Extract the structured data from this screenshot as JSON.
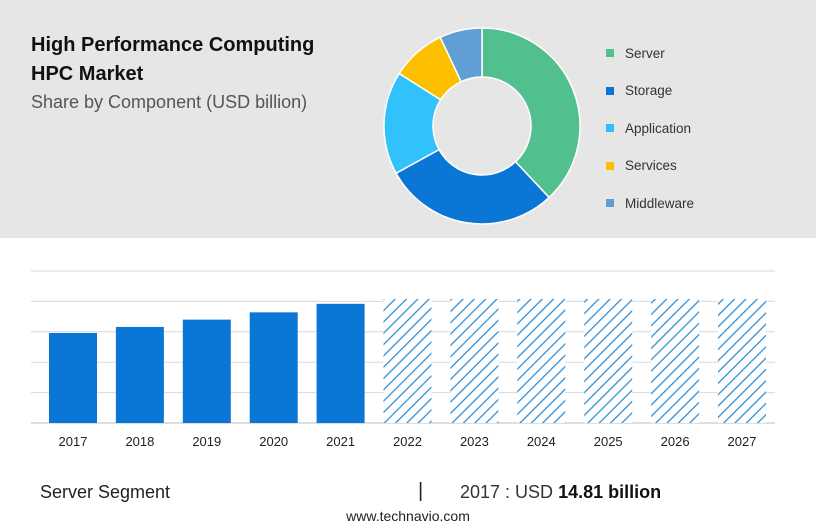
{
  "header": {
    "title": "High Performance Computing HPC Market",
    "subtitle": "Share by Component (USD billion)"
  },
  "chart_data": [
    {
      "type": "pie",
      "variant": "donut",
      "slices": [
        {
          "label": "Server",
          "share": 0.38,
          "color": "#52c08e"
        },
        {
          "label": "Storage",
          "share": 0.29,
          "color": "#0a76d6"
        },
        {
          "label": "Application",
          "share": 0.17,
          "color": "#31c1fb"
        },
        {
          "label": "Services",
          "share": 0.09,
          "color": "#fcc000"
        },
        {
          "label": "Middleware",
          "share": 0.07,
          "color": "#5f9fd5"
        }
      ],
      "legend_position": "right"
    },
    {
      "type": "bar",
      "categories": [
        "2017",
        "2018",
        "2019",
        "2020",
        "2021",
        "2022",
        "2023",
        "2024",
        "2025",
        "2026",
        "2027"
      ],
      "values": [
        14.81,
        15.8,
        17.0,
        18.2,
        19.6,
        20.4,
        20.4,
        20.4,
        20.4,
        20.4,
        20.4
      ],
      "forecast_from": "2022",
      "actual_color": "#0a76d6",
      "forecast_color": "#2f8fd8",
      "ylim": [
        0,
        25
      ],
      "grid": true
    }
  ],
  "footer": {
    "segment": "Server Segment",
    "separator": "|",
    "value_prefix": "2017 : USD",
    "value_amount": "14.81 billion",
    "source": "www.technavio.com"
  }
}
